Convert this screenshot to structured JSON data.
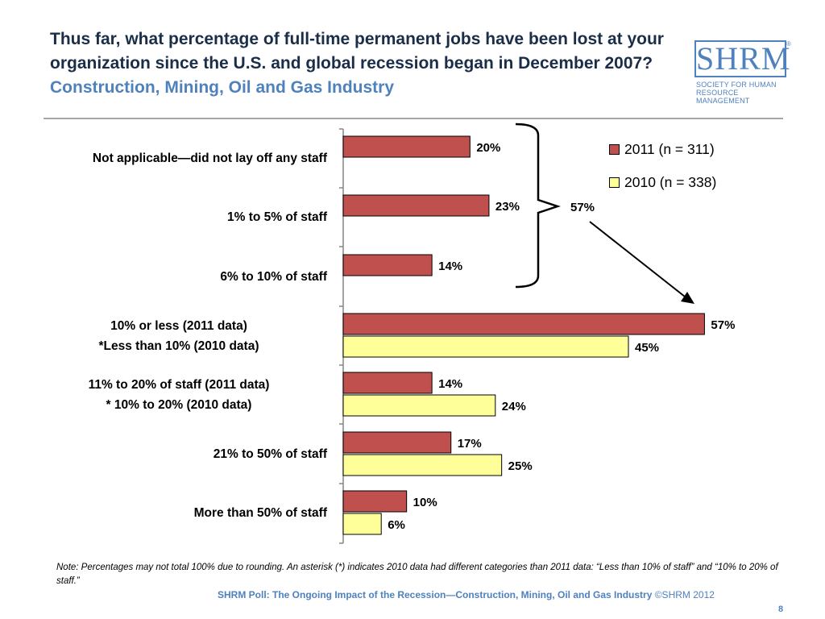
{
  "title": {
    "main": "Thus far, what percentage of full-time permanent jobs have been lost at your organization since the U.S. and global recession began in December 2007?",
    "sub": "Construction, Mining, Oil and Gas Industry"
  },
  "logo": {
    "mark": "SHRM",
    "registered": "®",
    "line1": "SOCIETY FOR HUMAN",
    "line2": "RESOURCE MANAGEMENT"
  },
  "chart_data": {
    "type": "bar",
    "orientation": "horizontal",
    "categories": [
      "Not applicable—did not lay off any staff",
      "1% to 5% of staff",
      "6% to 10% of staff",
      "10% or less (2011 data) *Less than 10% (2010 data)",
      "11% to 20% of staff (2011 data) * 10% to 20% (2010 data)",
      "21% to 50% of staff",
      "More than 50% of staff"
    ],
    "category_lines": [
      [
        "Not applicable—did not lay off any staff"
      ],
      [
        "1% to 5% of staff"
      ],
      [
        "6% to 10% of staff"
      ],
      [
        "10% or less (2011 data)",
        "*Less than 10% (2010 data)"
      ],
      [
        "11% to 20% of staff (2011 data)",
        "* 10% to 20% (2010 data)"
      ],
      [
        "21% to 50% of staff"
      ],
      [
        "More than 50% of staff"
      ]
    ],
    "series": [
      {
        "name": "2011 (n = 311)",
        "color": "#c0504d",
        "values": [
          20,
          23,
          14,
          57,
          14,
          17,
          10
        ],
        "labels": [
          "20%",
          "23%",
          "14%",
          "57%",
          "14%",
          "17%",
          "10%"
        ]
      },
      {
        "name": "2010 (n = 338)",
        "color": "#ffff99",
        "values": [
          null,
          null,
          null,
          45,
          24,
          25,
          6
        ],
        "labels": [
          null,
          null,
          null,
          "45%",
          "24%",
          "25%",
          "6%"
        ]
      }
    ],
    "xlim": [
      0,
      60
    ],
    "grid": false,
    "legend_position": "top-right",
    "annotation": {
      "type": "bracket",
      "spans_categories": [
        0,
        1,
        2
      ],
      "label": "57%",
      "arrow_to_category": 3
    }
  },
  "note": "Note: Percentages may not total 100% due to rounding. An asterisk (*) indicates 2010 data had different categories than 2011 data: “Less than 10% of staff” and “10% to 20% of staff.”",
  "footer": {
    "text": "SHRM Poll: The Ongoing Impact of the Recession—Construction, Mining, Oil and Gas Industry",
    "copyright": "©SHRM 2012"
  },
  "page_number": "8"
}
